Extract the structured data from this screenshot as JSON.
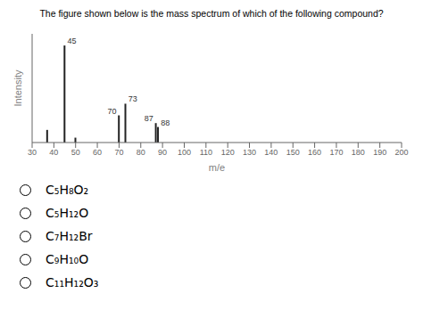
{
  "chart_data": {
    "type": "bar",
    "title": "The figure shown below is the mass spectrum of which of the following compound?",
    "xlabel": "m/e",
    "ylabel": "Intensity",
    "x": [
      37,
      45,
      50,
      70,
      73,
      87,
      88
    ],
    "values": [
      0.13,
      1.0,
      0.05,
      0.28,
      0.4,
      0.2,
      0.16
    ],
    "color": "#222222",
    "xlim": [
      30,
      200
    ],
    "ylim": [
      0,
      1.12
    ],
    "xticks": [
      30,
      40,
      50,
      60,
      70,
      80,
      90,
      100,
      110,
      120,
      130,
      140,
      150,
      160,
      170,
      180,
      190,
      200
    ],
    "tick_labels": "x",
    "grid": false,
    "annotations": [
      {
        "x": 45,
        "y": 1.0,
        "text": "45"
      },
      {
        "x": 70,
        "y": 0.28,
        "text": "70"
      },
      {
        "x": 73,
        "y": 0.4,
        "text": "73"
      },
      {
        "x": 87,
        "y": 0.2,
        "text": "87"
      },
      {
        "x": 88,
        "y": 0.16,
        "text": "88"
      }
    ],
    "choices": [
      "C₅H₈O₂",
      "C₅H₁₂O",
      "C₇H₁₂Br",
      "C₉H₁₀O",
      "C₁₁H₁₂O₃"
    ]
  }
}
